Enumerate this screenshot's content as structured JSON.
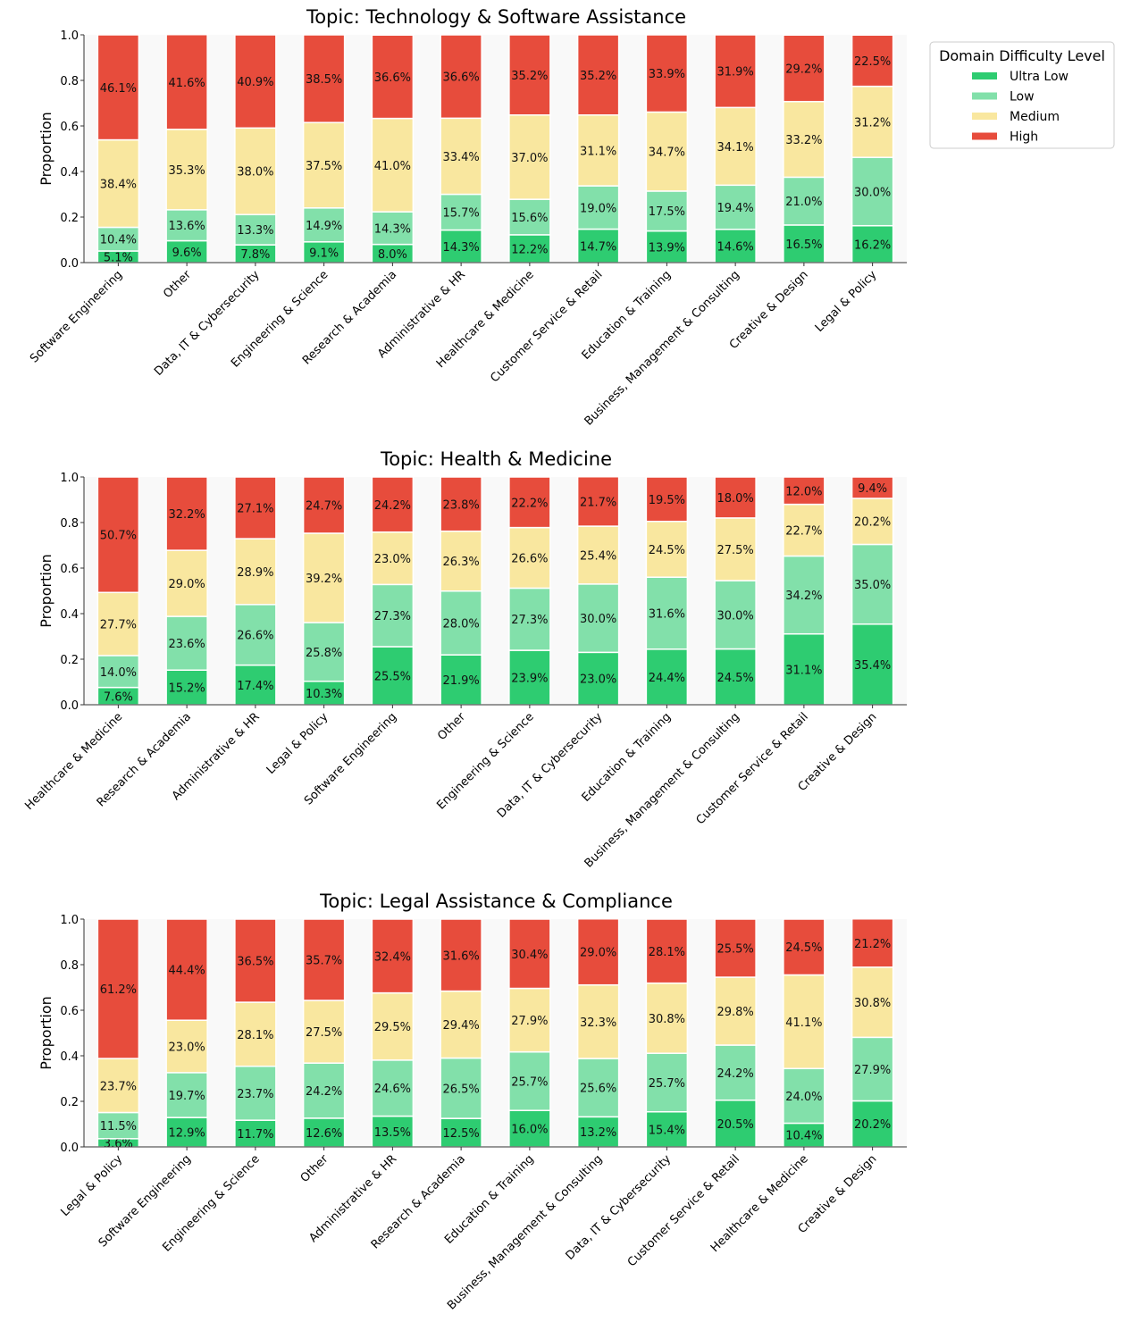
{
  "chart_data": [
    {
      "type": "bar",
      "stacked": true,
      "title": "Topic: Technology & Software Assistance",
      "xlabel": "",
      "ylabel": "Proportion",
      "ylim": [
        0,
        1.0
      ],
      "yticks": [
        "0.0",
        "0.2",
        "0.4",
        "0.6",
        "0.8",
        "1.0"
      ],
      "grid": false,
      "categories": [
        "Software Engineering",
        "Other",
        "Data, IT & Cybersecurity",
        "Engineering & Science",
        "Research & Academia",
        "Administrative & HR",
        "Healthcare & Medicine",
        "Customer Service & Retail",
        "Education & Training",
        "Business, Management & Consulting",
        "Creative & Design",
        "Legal & Policy"
      ],
      "series": [
        {
          "name": "Ultra Low",
          "values": [
            5.1,
            9.6,
            7.8,
            9.1,
            8.0,
            14.3,
            12.2,
            14.7,
            13.9,
            14.6,
            16.5,
            16.2
          ]
        },
        {
          "name": "Low",
          "values": [
            10.4,
            13.6,
            13.3,
            14.9,
            14.3,
            15.7,
            15.6,
            19.0,
            17.5,
            19.4,
            21.0,
            30.0
          ]
        },
        {
          "name": "Medium",
          "values": [
            38.4,
            35.3,
            38.0,
            37.5,
            41.0,
            33.4,
            37.0,
            31.1,
            34.7,
            34.1,
            33.2,
            31.2
          ]
        },
        {
          "name": "High",
          "values": [
            46.1,
            41.6,
            40.9,
            38.5,
            36.6,
            36.6,
            35.2,
            35.2,
            33.9,
            31.9,
            29.2,
            22.5
          ]
        }
      ],
      "value_unit": "%"
    },
    {
      "type": "bar",
      "stacked": true,
      "title": "Topic: Health & Medicine",
      "xlabel": "",
      "ylabel": "Proportion",
      "ylim": [
        0,
        1.0
      ],
      "yticks": [
        "0.0",
        "0.2",
        "0.4",
        "0.6",
        "0.8",
        "1.0"
      ],
      "grid": false,
      "categories": [
        "Healthcare & Medicine",
        "Research & Academia",
        "Administrative & HR",
        "Legal & Policy",
        "Software Engineering",
        "Other",
        "Engineering & Science",
        "Data, IT & Cybersecurity",
        "Education & Training",
        "Business, Management & Consulting",
        "Customer Service & Retail",
        "Creative & Design"
      ],
      "series": [
        {
          "name": "Ultra Low",
          "values": [
            7.6,
            15.2,
            17.4,
            10.3,
            25.5,
            21.9,
            23.9,
            23.0,
            24.4,
            24.5,
            31.1,
            35.4
          ]
        },
        {
          "name": "Low",
          "values": [
            14.0,
            23.6,
            26.6,
            25.8,
            27.3,
            28.0,
            27.3,
            30.0,
            31.6,
            30.0,
            34.2,
            35.0
          ]
        },
        {
          "name": "Medium",
          "values": [
            27.7,
            29.0,
            28.9,
            39.2,
            23.0,
            26.3,
            26.6,
            25.4,
            24.5,
            27.5,
            22.7,
            20.2
          ]
        },
        {
          "name": "High",
          "values": [
            50.7,
            32.2,
            27.1,
            24.7,
            24.2,
            23.8,
            22.2,
            21.7,
            19.5,
            18.0,
            12.0,
            9.4
          ]
        }
      ],
      "value_unit": "%"
    },
    {
      "type": "bar",
      "stacked": true,
      "title": "Topic: Legal Assistance & Compliance",
      "xlabel": "",
      "ylabel": "Proportion",
      "ylim": [
        0,
        1.0
      ],
      "yticks": [
        "0.0",
        "0.2",
        "0.4",
        "0.6",
        "0.8",
        "1.0"
      ],
      "grid": false,
      "categories": [
        "Legal & Policy",
        "Software Engineering",
        "Engineering & Science",
        "Other",
        "Administrative & HR",
        "Research & Academia",
        "Education & Training",
        "Business, Management & Consulting",
        "Data, IT & Cybersecurity",
        "Customer Service & Retail",
        "Healthcare & Medicine",
        "Creative & Design"
      ],
      "series": [
        {
          "name": "Ultra Low",
          "values": [
            3.6,
            12.9,
            11.7,
            12.6,
            13.5,
            12.5,
            16.0,
            13.2,
            15.4,
            20.5,
            10.4,
            20.2
          ]
        },
        {
          "name": "Low",
          "values": [
            11.5,
            19.7,
            23.7,
            24.2,
            24.6,
            26.5,
            25.7,
            25.6,
            25.7,
            24.2,
            24.0,
            27.9
          ]
        },
        {
          "name": "Medium",
          "values": [
            23.7,
            23.0,
            28.1,
            27.5,
            29.5,
            29.4,
            27.9,
            32.3,
            30.8,
            29.8,
            41.1,
            30.8
          ]
        },
        {
          "name": "High",
          "values": [
            61.2,
            44.4,
            36.5,
            35.7,
            32.4,
            31.6,
            30.4,
            29.0,
            28.1,
            25.5,
            24.5,
            21.2
          ]
        }
      ],
      "value_unit": "%"
    }
  ],
  "legend": {
    "title": "Domain Difficulty Level",
    "placement": "top-right, outside first chart",
    "items": [
      {
        "label": "Ultra Low",
        "color": "#2ecc71"
      },
      {
        "label": "Low",
        "color": "#82e0aa"
      },
      {
        "label": "Medium",
        "color": "#f9e79f"
      },
      {
        "label": "High",
        "color": "#e74c3c"
      }
    ]
  },
  "colors": {
    "plot_background": "#f9f9f9",
    "axis": "#333333"
  }
}
